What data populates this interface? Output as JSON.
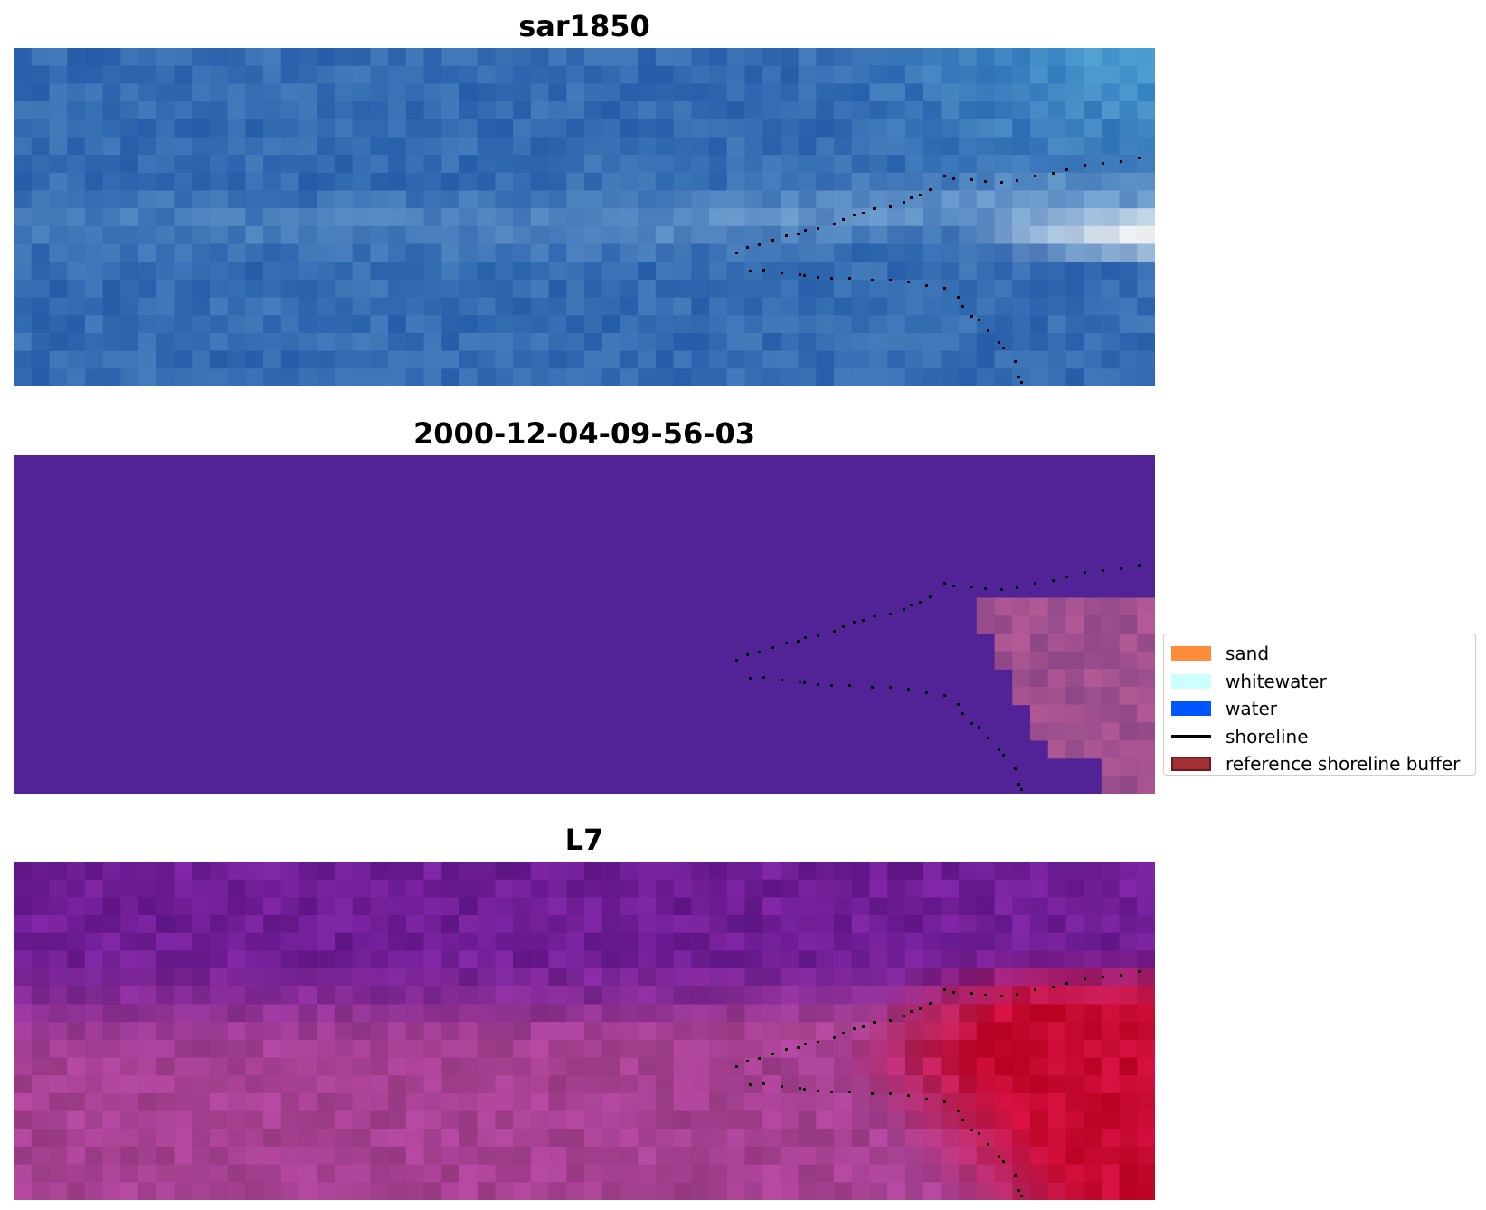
{
  "panels": [
    {
      "title": "sar1850",
      "style": "sar-blue"
    },
    {
      "title": "2000-12-04-09-56-03",
      "style": "classified"
    },
    {
      "title": "L7",
      "style": "index-magenta"
    }
  ],
  "colors": {
    "sand": "#ff8c3a",
    "whitewater": "#ccffff",
    "water": "#0055ff",
    "shoreline": "#000000",
    "buffer_fill": "#a03036",
    "buffer_edge": "#6b1a1e",
    "classified_background": "#522297",
    "classified_patch": "#a0508e"
  },
  "legend": {
    "items": [
      {
        "label": "sand",
        "kind": "patch",
        "color": "#ff8c3a"
      },
      {
        "label": "whitewater",
        "kind": "patch",
        "color": "#ccffff"
      },
      {
        "label": "water",
        "kind": "patch",
        "color": "#0055ff"
      },
      {
        "label": "shoreline",
        "kind": "line",
        "color": "#000000"
      },
      {
        "label": "reference shoreline buffer",
        "kind": "patch",
        "color": "#a03036"
      }
    ]
  }
}
